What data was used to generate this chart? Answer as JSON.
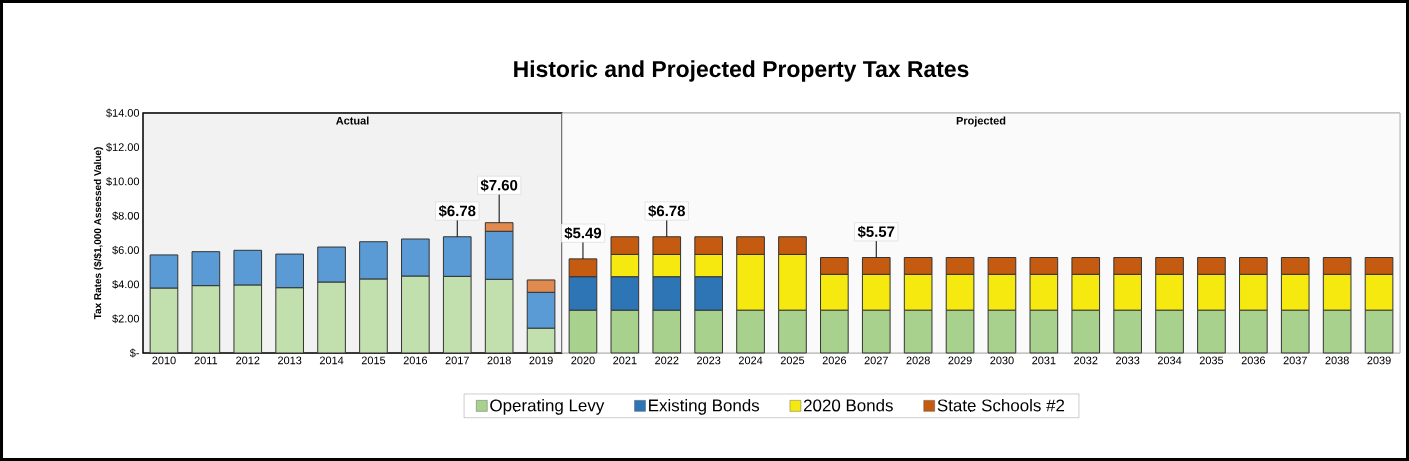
{
  "chart_data": {
    "type": "bar",
    "stacked": true,
    "title": "Historic and Projected Property Tax Rates",
    "ylabel": "Tax Rates ($/$1,000 Assessed Value)",
    "categories": [
      "2010",
      "2011",
      "2012",
      "2013",
      "2014",
      "2015",
      "2016",
      "2017",
      "2018",
      "2019",
      "2020",
      "2021",
      "2022",
      "2023",
      "2024",
      "2025",
      "2026",
      "2027",
      "2028",
      "2029",
      "2030",
      "2031",
      "2032",
      "2033",
      "2034",
      "2035",
      "2036",
      "2037",
      "2038",
      "2039"
    ],
    "series": [
      {
        "name": "Operating Levy",
        "color": "#a9d18e",
        "colors": [
          "#c2e0ad",
          "#c2e0ad",
          "#c2e0ad",
          "#c2e0ad",
          "#c2e0ad",
          "#c2e0ad",
          "#c2e0ad",
          "#c2e0ad",
          "#c2e0ad",
          "#c2e0ad",
          "#a9d18e",
          "#a9d18e",
          "#a9d18e",
          "#a9d18e",
          "#a9d18e",
          "#a9d18e",
          "#a9d18e",
          "#a9d18e",
          "#a9d18e",
          "#a9d18e",
          "#a9d18e",
          "#a9d18e",
          "#a9d18e",
          "#a9d18e",
          "#a9d18e",
          "#a9d18e",
          "#a9d18e",
          "#a9d18e",
          "#a9d18e",
          "#a9d18e"
        ],
        "values": [
          3.79,
          3.93,
          3.97,
          3.81,
          4.14,
          4.32,
          4.49,
          4.47,
          4.3,
          1.45,
          2.5,
          2.5,
          2.5,
          2.5,
          2.5,
          2.5,
          2.5,
          2.5,
          2.5,
          2.5,
          2.5,
          2.5,
          2.5,
          2.5,
          2.5,
          2.5,
          2.5,
          2.5,
          2.5,
          2.5
        ]
      },
      {
        "name": "Existing Bonds",
        "color": "#2e75b6",
        "colors": [
          "#5b9bd5",
          "#5b9bd5",
          "#5b9bd5",
          "#5b9bd5",
          "#5b9bd5",
          "#5b9bd5",
          "#5b9bd5",
          "#5b9bd5",
          "#5b9bd5",
          "#5b9bd5",
          "#2e75b6",
          "#2e75b6",
          "#2e75b6",
          "#2e75b6",
          "#2e75b6",
          "#2e75b6",
          "#2e75b6",
          "#2e75b6",
          "#2e75b6",
          "#2e75b6",
          "#2e75b6",
          "#2e75b6",
          "#2e75b6",
          "#2e75b6",
          "#2e75b6",
          "#2e75b6",
          "#2e75b6",
          "#2e75b6",
          "#2e75b6",
          "#2e75b6"
        ],
        "values": [
          1.93,
          1.98,
          2.02,
          1.96,
          2.04,
          2.17,
          2.16,
          2.31,
          2.8,
          2.09,
          1.95,
          1.95,
          1.95,
          1.95,
          null,
          null,
          null,
          null,
          null,
          null,
          null,
          null,
          null,
          null,
          null,
          null,
          null,
          null,
          null,
          null
        ]
      },
      {
        "name": "2020 Bonds",
        "color": "#f5e90f",
        "colors": [
          "#f5e90f",
          "#f5e90f",
          "#f5e90f",
          "#f5e90f",
          "#f5e90f",
          "#f5e90f",
          "#f5e90f",
          "#f5e90f",
          "#f5e90f",
          "#f5e90f",
          "#f5e90f",
          "#f5e90f",
          "#f5e90f",
          "#f5e90f",
          "#f5e90f",
          "#f5e90f",
          "#f5e90f",
          "#f5e90f",
          "#f5e90f",
          "#f5e90f",
          "#f5e90f",
          "#f5e90f",
          "#f5e90f",
          "#f5e90f",
          "#f5e90f",
          "#f5e90f",
          "#f5e90f",
          "#f5e90f",
          "#f5e90f",
          "#f5e90f"
        ],
        "values": [
          null,
          null,
          null,
          null,
          null,
          null,
          null,
          null,
          null,
          null,
          null,
          1.3,
          1.3,
          1.3,
          3.25,
          3.25,
          2.09,
          2.09,
          2.09,
          2.09,
          2.09,
          2.09,
          2.09,
          2.09,
          2.09,
          2.09,
          2.09,
          2.09,
          2.09,
          2.09
        ]
      },
      {
        "name": "State  Schools #2",
        "color": "#c55a11",
        "colors": [
          "#e08a50",
          "#e08a50",
          "#e08a50",
          "#e08a50",
          "#e08a50",
          "#e08a50",
          "#e08a50",
          "#e08a50",
          "#e08a50",
          "#e08a50",
          "#c55a11",
          "#c55a11",
          "#c55a11",
          "#c55a11",
          "#c55a11",
          "#c55a11",
          "#c55a11",
          "#c55a11",
          "#c55a11",
          "#c55a11",
          "#c55a11",
          "#c55a11",
          "#c55a11",
          "#c55a11",
          "#c55a11",
          "#c55a11",
          "#c55a11",
          "#c55a11",
          "#c55a11",
          "#c55a11"
        ],
        "values": [
          null,
          null,
          null,
          null,
          null,
          null,
          null,
          null,
          0.5,
          0.72,
          1.04,
          1.03,
          1.03,
          1.03,
          1.03,
          1.03,
          0.98,
          0.98,
          0.98,
          0.98,
          0.98,
          0.98,
          0.98,
          0.98,
          0.98,
          0.98,
          0.98,
          0.98,
          0.98,
          0.98
        ]
      }
    ],
    "ylim": [
      0,
      14
    ],
    "yticks": [
      {
        "value": 0,
        "label": "$-"
      },
      {
        "value": 2,
        "label": "$2.00"
      },
      {
        "value": 4,
        "label": "$4.00"
      },
      {
        "value": 6,
        "label": "$6.00"
      },
      {
        "value": 8,
        "label": "$8.00"
      },
      {
        "value": 10,
        "label": "$10.00"
      },
      {
        "value": 12,
        "label": "$12.00"
      },
      {
        "value": 14,
        "label": "$14.00"
      }
    ],
    "grid": "y",
    "legend": "bottom",
    "bands": [
      {
        "axis": "x",
        "from": "2010",
        "to": "2019",
        "label": "Actual",
        "color": "#f2f2f2"
      },
      {
        "axis": "x",
        "from": "2020",
        "to": "2039",
        "label": "Projected",
        "color": "#fafafa"
      }
    ],
    "annotations": [
      {
        "text": "$6.78",
        "x": "2017",
        "y": 6.78
      },
      {
        "text": "$7.60",
        "x": "2018",
        "y": 7.6
      },
      {
        "text": "$5.49",
        "x": "2020",
        "y": 5.49
      },
      {
        "text": "$6.78",
        "x": "2022",
        "y": 6.78
      },
      {
        "text": "$5.57",
        "x": "2027",
        "y": 5.57
      }
    ]
  }
}
